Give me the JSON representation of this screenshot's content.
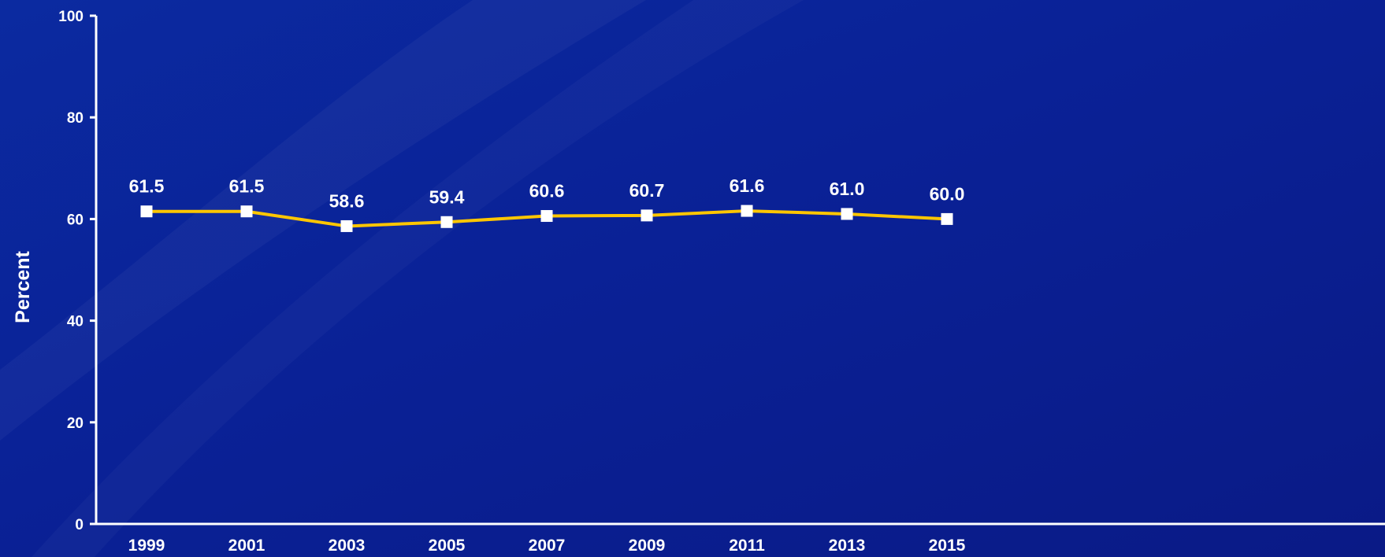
{
  "chart_data": {
    "type": "line",
    "ylabel": "Percent",
    "xlabel": "",
    "ylim": [
      0,
      100
    ],
    "yticks": [
      0,
      20,
      40,
      60,
      80,
      100
    ],
    "categories": [
      "1999",
      "2001",
      "2003",
      "2005",
      "2007",
      "2009",
      "2011",
      "2013",
      "2015"
    ],
    "series": [
      {
        "values": [
          61.5,
          61.5,
          58.6,
          59.4,
          60.6,
          60.7,
          61.6,
          61.0,
          60.0
        ],
        "labels": [
          "61.5",
          "61.5",
          "58.6",
          "59.4",
          "60.6",
          "60.7",
          "61.6",
          "61.0",
          "60.0"
        ],
        "line_color": "#ffc600",
        "marker_color": "#ffffff",
        "marker": "square"
      }
    ],
    "grid": false,
    "legend": "none"
  },
  "colors": {
    "background": "#0a1f8c",
    "axis": "#ffffff",
    "text": "#ffffff"
  }
}
